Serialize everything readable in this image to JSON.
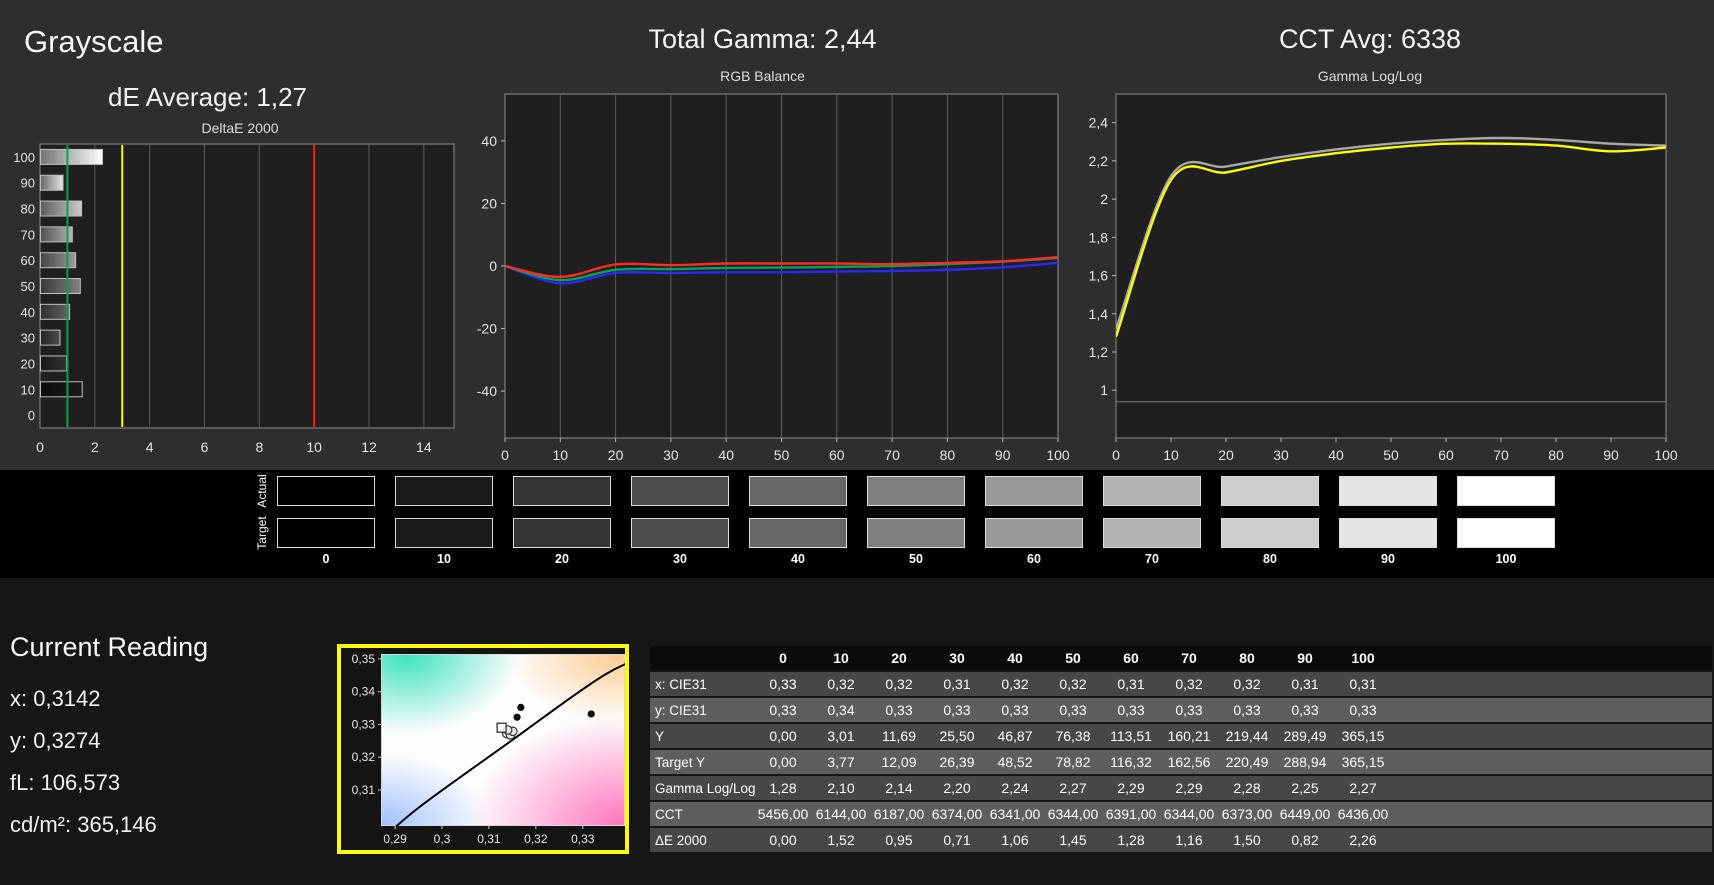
{
  "grayscale_panel": {
    "title": "Grayscale",
    "de_average": "dE Average: 1,27"
  },
  "current_reading": {
    "title": "Current Reading",
    "lines": [
      "x: 0,3142",
      "y: 0,3274",
      "fL: 106,573",
      "cd/m²: 365,146"
    ]
  },
  "swatch_strip": {
    "row_labels": [
      "Actual",
      "Target"
    ],
    "levels": [
      "0",
      "10",
      "20",
      "30",
      "40",
      "50",
      "60",
      "70",
      "80",
      "90",
      "100"
    ],
    "colors": [
      "#000000",
      "#1a1a1a",
      "#333333",
      "#4d4d4d",
      "#666666",
      "#808080",
      "#999999",
      "#b3b3b3",
      "#cccccc",
      "#e5e5e5",
      "#ffffff"
    ]
  },
  "table": {
    "col_headers": [
      "",
      "0",
      "10",
      "20",
      "30",
      "40",
      "50",
      "60",
      "70",
      "80",
      "90",
      "100"
    ],
    "rows": [
      {
        "label": "x: CIE31",
        "values": [
          "0,33",
          "0,32",
          "0,32",
          "0,31",
          "0,32",
          "0,32",
          "0,31",
          "0,32",
          "0,32",
          "0,31",
          "0,31"
        ]
      },
      {
        "label": "y: CIE31",
        "values": [
          "0,33",
          "0,34",
          "0,33",
          "0,33",
          "0,33",
          "0,33",
          "0,33",
          "0,33",
          "0,33",
          "0,33",
          "0,33"
        ]
      },
      {
        "label": "Y",
        "values": [
          "0,00",
          "3,01",
          "11,69",
          "25,50",
          "46,87",
          "76,38",
          "113,51",
          "160,21",
          "219,44",
          "289,49",
          "365,15"
        ]
      },
      {
        "label": "Target Y",
        "values": [
          "0,00",
          "3,77",
          "12,09",
          "26,39",
          "48,52",
          "78,82",
          "116,32",
          "162,56",
          "220,49",
          "288,94",
          "365,15"
        ]
      },
      {
        "label": "Gamma Log/Log",
        "values": [
          "1,28",
          "2,10",
          "2,14",
          "2,20",
          "2,24",
          "2,27",
          "2,29",
          "2,29",
          "2,28",
          "2,25",
          "2,27"
        ]
      },
      {
        "label": "CCT",
        "values": [
          "5456,00",
          "6144,00",
          "6187,00",
          "6374,00",
          "6341,00",
          "6344,00",
          "6391,00",
          "6344,00",
          "6373,00",
          "6449,00",
          "6436,00"
        ]
      },
      {
        "label": "ΔE 2000",
        "values": [
          "0,00",
          "1,52",
          "0,95",
          "0,71",
          "1,06",
          "1,45",
          "1,28",
          "1,16",
          "1,50",
          "0,82",
          "2,26"
        ]
      }
    ]
  },
  "chart_data": [
    {
      "id": "deltae",
      "type": "bar",
      "orientation": "horizontal",
      "title": "DeltaE 2000",
      "categories": [
        100,
        90,
        80,
        70,
        60,
        50,
        40,
        30,
        20,
        10,
        0
      ],
      "values": [
        2.26,
        0.82,
        1.5,
        1.16,
        1.28,
        1.45,
        1.06,
        0.71,
        0.95,
        1.52,
        0.0
      ],
      "bar_colors": [
        "#ffffff",
        "#e5e5e5",
        "#cccccc",
        "#b3b3b3",
        "#999999",
        "#808080",
        "#666666",
        "#4d4d4d",
        "#333333",
        "#1a1a1a",
        "#000000"
      ],
      "xlim": [
        0,
        15.1
      ],
      "xticks": [
        0,
        2,
        4,
        6,
        8,
        10,
        12,
        14
      ],
      "thresholds": [
        {
          "name": "good",
          "value": 1,
          "color": "#00a550"
        },
        {
          "name": "warning",
          "value": 3,
          "color": "#ffff00"
        },
        {
          "name": "bad",
          "value": 10,
          "color": "#ff1a1a"
        }
      ]
    },
    {
      "id": "rgb_balance",
      "type": "line",
      "header": "Total Gamma: 2,44",
      "title": "RGB Balance",
      "x": [
        0,
        10,
        20,
        30,
        40,
        50,
        60,
        70,
        80,
        90,
        100
      ],
      "xticks": [
        0,
        10,
        20,
        30,
        40,
        50,
        60,
        70,
        80,
        90,
        100
      ],
      "ylim": [
        -55,
        55
      ],
      "yticks": [
        {
          "v": 40,
          "label": "40"
        },
        {
          "v": 20,
          "label": "20"
        },
        {
          "v": 0,
          "label": "0"
        },
        {
          "v": -20,
          "label": "-20"
        },
        {
          "v": -40,
          "label": "-40"
        }
      ],
      "vgrid": true,
      "series": [
        {
          "name": "blue",
          "color": "#2828ff",
          "values": [
            0,
            -5.5,
            -2.2,
            -2.2,
            -2.0,
            -2.0,
            -1.8,
            -1.6,
            -1.2,
            -0.4,
            1.0
          ]
        },
        {
          "name": "green",
          "color": "#00a651",
          "values": [
            0,
            -4.5,
            -1.2,
            -1.0,
            -0.6,
            -0.5,
            -0.3,
            0.0,
            0.6,
            1.4,
            2.6
          ]
        },
        {
          "name": "red",
          "color": "#ff2a2a",
          "values": [
            0,
            -3.5,
            0.5,
            0.3,
            0.8,
            0.8,
            0.8,
            0.6,
            1.0,
            1.5,
            2.8
          ]
        }
      ]
    },
    {
      "id": "gamma",
      "type": "line",
      "header": "CCT Avg: 6338",
      "title": "Gamma Log/Log",
      "x": [
        0,
        10,
        20,
        30,
        40,
        50,
        60,
        70,
        80,
        90,
        100
      ],
      "xticks": [
        0,
        10,
        20,
        30,
        40,
        50,
        60,
        70,
        80,
        90,
        100
      ],
      "ylim": [
        0.75,
        2.55
      ],
      "yticks": [
        {
          "v": 2.4,
          "label": "2,4"
        },
        {
          "v": 2.2,
          "label": "2,2"
        },
        {
          "v": 2.0,
          "label": "2"
        },
        {
          "v": 1.8,
          "label": "1,8"
        },
        {
          "v": 1.6,
          "label": "1,6"
        },
        {
          "v": 1.4,
          "label": "1,4"
        },
        {
          "v": 1.2,
          "label": "1,2"
        },
        {
          "v": 1.0,
          "label": "1"
        }
      ],
      "hgrid": [
        0.94
      ],
      "vgrid": false,
      "series": [
        {
          "name": "reference",
          "color": "#a8a8a8",
          "values": [
            1.32,
            2.12,
            2.17,
            2.22,
            2.26,
            2.29,
            2.31,
            2.32,
            2.31,
            2.29,
            2.28
          ]
        },
        {
          "name": "measured",
          "color": "#ffff00",
          "values": [
            1.28,
            2.1,
            2.14,
            2.2,
            2.24,
            2.27,
            2.29,
            2.29,
            2.28,
            2.25,
            2.27
          ]
        }
      ]
    },
    {
      "id": "cie",
      "type": "scatter",
      "title": "CIE xy Chromaticity (zoom)",
      "frame_color": "#ffff00",
      "xlim": [
        0.287,
        0.339
      ],
      "ylim": [
        0.299,
        0.3515
      ],
      "xticks": [
        {
          "v": 0.29,
          "label": "0,29"
        },
        {
          "v": 0.3,
          "label": "0,3"
        },
        {
          "v": 0.31,
          "label": "0,31"
        },
        {
          "v": 0.32,
          "label": "0,32"
        },
        {
          "v": 0.33,
          "label": "0,33"
        }
      ],
      "yticks": [
        {
          "v": 0.35,
          "label": "0,35"
        },
        {
          "v": 0.34,
          "label": "0,34"
        },
        {
          "v": 0.33,
          "label": "0,33"
        },
        {
          "v": 0.32,
          "label": "0,32"
        },
        {
          "v": 0.31,
          "label": "0,31"
        }
      ],
      "locus": [
        [
          0.2865,
          0.294
        ],
        [
          0.2952,
          0.3048
        ],
        [
          0.3135,
          0.3237
        ],
        [
          0.3346,
          0.3451
        ],
        [
          0.346,
          0.352
        ]
      ],
      "points": [
        {
          "type": "circle",
          "x": 0.3138,
          "y": 0.3272
        },
        {
          "type": "circle",
          "x": 0.3146,
          "y": 0.3268
        },
        {
          "type": "circle",
          "x": 0.3151,
          "y": 0.3279
        },
        {
          "type": "circle",
          "x": 0.314,
          "y": 0.3283
        },
        {
          "type": "square",
          "x": 0.3127,
          "y": 0.329
        },
        {
          "type": "dot",
          "x": 0.316,
          "y": 0.3322
        },
        {
          "type": "dot",
          "x": 0.3168,
          "y": 0.3352
        },
        {
          "type": "dot",
          "x": 0.3318,
          "y": 0.3332
        }
      ]
    }
  ]
}
